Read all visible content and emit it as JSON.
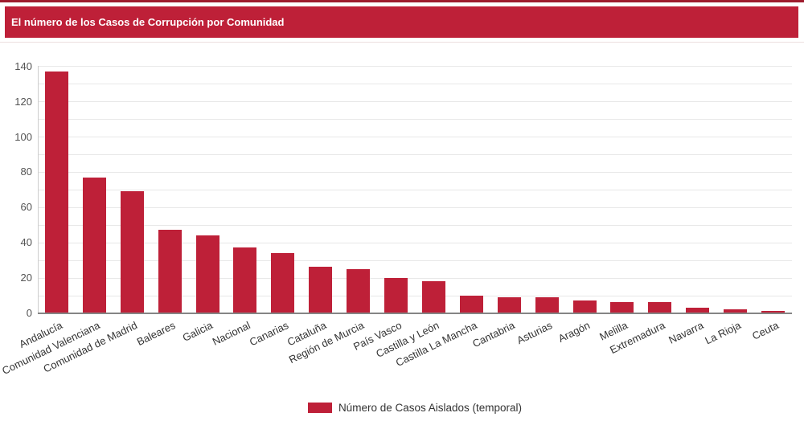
{
  "header": {
    "title": "El número de los Casos de Corrupción por Comunidad"
  },
  "colors": {
    "accent_red": "#be2038",
    "top_border_red": "#9e1b2d",
    "gridline": "#e8e8e8",
    "axis_line": "#858585",
    "y_tick_text": "#545454",
    "x_label_text": "#333333"
  },
  "legend": {
    "label": "Número de Casos Aislados (temporal)"
  },
  "chart_data": {
    "type": "bar",
    "title": "El número de los Casos de Corrupción por Comunidad",
    "categories": [
      "Andalucía",
      "Comunidad Valenciana",
      "Comunidad de Madrid",
      "Baleares",
      "Galicia",
      "Nacional",
      "Canarias",
      "Cataluña",
      "Región de Murcia",
      "País Vasco",
      "Castilla y León",
      "Castilla La Mancha",
      "Cantabria",
      "Asturias",
      "Aragón",
      "Melilla",
      "Extremadura",
      "Navarra",
      "La Rioja",
      "Ceuta"
    ],
    "values": [
      137,
      77,
      69,
      47,
      44,
      37,
      34,
      26,
      25,
      20,
      18,
      10,
      9,
      9,
      7,
      6,
      6,
      3,
      2,
      1
    ],
    "series": [
      {
        "name": "Número de Casos Aislados (temporal)",
        "values": [
          137,
          77,
          69,
          47,
          44,
          37,
          34,
          26,
          25,
          20,
          18,
          10,
          9,
          9,
          7,
          6,
          6,
          3,
          2,
          1
        ]
      }
    ],
    "xlabel": "",
    "ylabel": "",
    "ylim": [
      0,
      140
    ],
    "y_ticks": [
      0,
      20,
      40,
      60,
      80,
      100,
      120,
      140
    ],
    "y_gridlines_every": 10,
    "grid": true,
    "legend_position": "bottom",
    "bar_color": "#be2038",
    "x_label_rotation_deg": -26
  }
}
